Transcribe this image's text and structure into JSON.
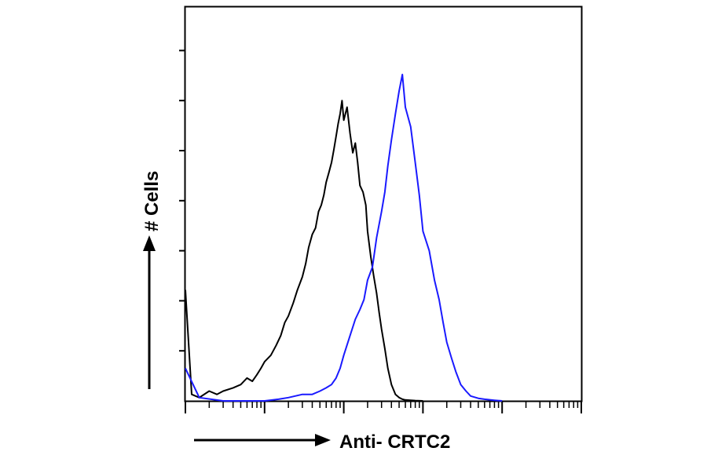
{
  "chart_data": {
    "type": "line",
    "title": "",
    "xlabel": "Anti- CRTC2",
    "ylabel": "# Cells",
    "x_scale": "log",
    "xlim": [
      1,
      100000
    ],
    "grid": false,
    "legend": "none",
    "series": [
      {
        "color": "#000000",
        "x": [
          1.0,
          1.2,
          1.5,
          2.0,
          2.5,
          3.0,
          4.0,
          5.0,
          6.0,
          7.0,
          8.0,
          9.0,
          10,
          12,
          14,
          16,
          18,
          20,
          23,
          26,
          30,
          33,
          36,
          40,
          44,
          48,
          52,
          56,
          60,
          65,
          70,
          75,
          80,
          85,
          90,
          95,
          100,
          110,
          120,
          130,
          140,
          150,
          160,
          175,
          190,
          200,
          220,
          240,
          260,
          280,
          300,
          330,
          360,
          400,
          450,
          500,
          550,
          600,
          700,
          800,
          1000
        ],
        "y": [
          0.34,
          0.02,
          0.01,
          0.03,
          0.02,
          0.03,
          0.04,
          0.05,
          0.07,
          0.06,
          0.08,
          0.1,
          0.12,
          0.14,
          0.17,
          0.2,
          0.24,
          0.26,
          0.3,
          0.34,
          0.38,
          0.42,
          0.47,
          0.51,
          0.53,
          0.58,
          0.6,
          0.63,
          0.67,
          0.7,
          0.73,
          0.77,
          0.81,
          0.85,
          0.88,
          0.92,
          0.86,
          0.9,
          0.82,
          0.76,
          0.79,
          0.73,
          0.66,
          0.64,
          0.6,
          0.52,
          0.44,
          0.38,
          0.33,
          0.27,
          0.22,
          0.16,
          0.1,
          0.05,
          0.02,
          0.01,
          0.005,
          0.003,
          0.002,
          0.001,
          0.0
        ]
      },
      {
        "color": "#1a1aff",
        "x": [
          1.0,
          1.5,
          3,
          5,
          10,
          15,
          20,
          30,
          40,
          50,
          60,
          70,
          80,
          90,
          100,
          120,
          140,
          160,
          180,
          200,
          230,
          260,
          300,
          330,
          360,
          400,
          450,
          500,
          550,
          600,
          700,
          800,
          900,
          1000,
          1200,
          1400,
          1600,
          1800,
          2000,
          2300,
          2600,
          3000,
          3500,
          4000,
          5000,
          6000,
          8000,
          10000
        ],
        "y": [
          0.1,
          0.01,
          0.0,
          0.0,
          0.0,
          0.005,
          0.01,
          0.02,
          0.02,
          0.03,
          0.04,
          0.05,
          0.07,
          0.1,
          0.14,
          0.2,
          0.25,
          0.28,
          0.31,
          0.37,
          0.41,
          0.5,
          0.58,
          0.64,
          0.72,
          0.8,
          0.88,
          0.95,
          1.0,
          0.9,
          0.84,
          0.73,
          0.63,
          0.52,
          0.46,
          0.37,
          0.31,
          0.24,
          0.18,
          0.13,
          0.09,
          0.05,
          0.03,
          0.015,
          0.008,
          0.005,
          0.002,
          0.0
        ]
      }
    ]
  }
}
